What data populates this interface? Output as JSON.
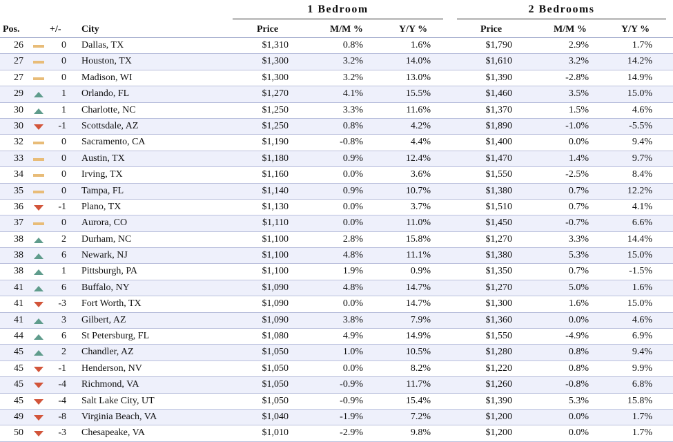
{
  "groups": {
    "one_bedroom": "1 Bedroom",
    "two_bedrooms": "2 Bedrooms"
  },
  "columns": {
    "pos": "Pos.",
    "change": "+/-",
    "city": "City",
    "price": "Price",
    "mm": "M/M %",
    "yy": "Y/Y %"
  },
  "indicator_colors": {
    "up": "#5f9c8c",
    "down": "#d2553a",
    "same": "#e8bc78"
  },
  "rows": [
    {
      "pos": "26",
      "trend": "same",
      "change": "0",
      "city": "Dallas, TX",
      "p1": "$1,310",
      "m1": "0.8%",
      "y1": "1.6%",
      "p2": "$1,790",
      "m2": "2.9%",
      "y2": "1.7%"
    },
    {
      "pos": "27",
      "trend": "same",
      "change": "0",
      "city": "Houston, TX",
      "p1": "$1,300",
      "m1": "3.2%",
      "y1": "14.0%",
      "p2": "$1,610",
      "m2": "3.2%",
      "y2": "14.2%"
    },
    {
      "pos": "27",
      "trend": "same",
      "change": "0",
      "city": "Madison, WI",
      "p1": "$1,300",
      "m1": "3.2%",
      "y1": "13.0%",
      "p2": "$1,390",
      "m2": "-2.8%",
      "y2": "14.9%"
    },
    {
      "pos": "29",
      "trend": "up",
      "change": "1",
      "city": "Orlando, FL",
      "p1": "$1,270",
      "m1": "4.1%",
      "y1": "15.5%",
      "p2": "$1,460",
      "m2": "3.5%",
      "y2": "15.0%"
    },
    {
      "pos": "30",
      "trend": "up",
      "change": "1",
      "city": "Charlotte, NC",
      "p1": "$1,250",
      "m1": "3.3%",
      "y1": "11.6%",
      "p2": "$1,370",
      "m2": "1.5%",
      "y2": "4.6%"
    },
    {
      "pos": "30",
      "trend": "down",
      "change": "-1",
      "city": "Scottsdale, AZ",
      "p1": "$1,250",
      "m1": "0.8%",
      "y1": "4.2%",
      "p2": "$1,890",
      "m2": "-1.0%",
      "y2": "-5.5%"
    },
    {
      "pos": "32",
      "trend": "same",
      "change": "0",
      "city": "Sacramento, CA",
      "p1": "$1,190",
      "m1": "-0.8%",
      "y1": "4.4%",
      "p2": "$1,400",
      "m2": "0.0%",
      "y2": "9.4%"
    },
    {
      "pos": "33",
      "trend": "same",
      "change": "0",
      "city": "Austin, TX",
      "p1": "$1,180",
      "m1": "0.9%",
      "y1": "12.4%",
      "p2": "$1,470",
      "m2": "1.4%",
      "y2": "9.7%"
    },
    {
      "pos": "34",
      "trend": "same",
      "change": "0",
      "city": "Irving, TX",
      "p1": "$1,160",
      "m1": "0.0%",
      "y1": "3.6%",
      "p2": "$1,550",
      "m2": "-2.5%",
      "y2": "8.4%"
    },
    {
      "pos": "35",
      "trend": "same",
      "change": "0",
      "city": "Tampa, FL",
      "p1": "$1,140",
      "m1": "0.9%",
      "y1": "10.7%",
      "p2": "$1,380",
      "m2": "0.7%",
      "y2": "12.2%"
    },
    {
      "pos": "36",
      "trend": "down",
      "change": "-1",
      "city": "Plano, TX",
      "p1": "$1,130",
      "m1": "0.0%",
      "y1": "3.7%",
      "p2": "$1,510",
      "m2": "0.7%",
      "y2": "4.1%"
    },
    {
      "pos": "37",
      "trend": "same",
      "change": "0",
      "city": "Aurora, CO",
      "p1": "$1,110",
      "m1": "0.0%",
      "y1": "11.0%",
      "p2": "$1,450",
      "m2": "-0.7%",
      "y2": "6.6%"
    },
    {
      "pos": "38",
      "trend": "up",
      "change": "2",
      "city": "Durham, NC",
      "p1": "$1,100",
      "m1": "2.8%",
      "y1": "15.8%",
      "p2": "$1,270",
      "m2": "3.3%",
      "y2": "14.4%"
    },
    {
      "pos": "38",
      "trend": "up",
      "change": "6",
      "city": "Newark, NJ",
      "p1": "$1,100",
      "m1": "4.8%",
      "y1": "11.1%",
      "p2": "$1,380",
      "m2": "5.3%",
      "y2": "15.0%"
    },
    {
      "pos": "38",
      "trend": "up",
      "change": "1",
      "city": "Pittsburgh, PA",
      "p1": "$1,100",
      "m1": "1.9%",
      "y1": "0.9%",
      "p2": "$1,350",
      "m2": "0.7%",
      "y2": "-1.5%"
    },
    {
      "pos": "41",
      "trend": "up",
      "change": "6",
      "city": "Buffalo, NY",
      "p1": "$1,090",
      "m1": "4.8%",
      "y1": "14.7%",
      "p2": "$1,270",
      "m2": "5.0%",
      "y2": "1.6%"
    },
    {
      "pos": "41",
      "trend": "down",
      "change": "-3",
      "city": "Fort Worth, TX",
      "p1": "$1,090",
      "m1": "0.0%",
      "y1": "14.7%",
      "p2": "$1,300",
      "m2": "1.6%",
      "y2": "15.0%"
    },
    {
      "pos": "41",
      "trend": "up",
      "change": "3",
      "city": "Gilbert, AZ",
      "p1": "$1,090",
      "m1": "3.8%",
      "y1": "7.9%",
      "p2": "$1,360",
      "m2": "0.0%",
      "y2": "4.6%"
    },
    {
      "pos": "44",
      "trend": "up",
      "change": "6",
      "city": "St Petersburg, FL",
      "p1": "$1,080",
      "m1": "4.9%",
      "y1": "14.9%",
      "p2": "$1,550",
      "m2": "-4.9%",
      "y2": "6.9%"
    },
    {
      "pos": "45",
      "trend": "up",
      "change": "2",
      "city": "Chandler, AZ",
      "p1": "$1,050",
      "m1": "1.0%",
      "y1": "10.5%",
      "p2": "$1,280",
      "m2": "0.8%",
      "y2": "9.4%"
    },
    {
      "pos": "45",
      "trend": "down",
      "change": "-1",
      "city": "Henderson, NV",
      "p1": "$1,050",
      "m1": "0.0%",
      "y1": "8.2%",
      "p2": "$1,220",
      "m2": "0.8%",
      "y2": "9.9%"
    },
    {
      "pos": "45",
      "trend": "down",
      "change": "-4",
      "city": "Richmond, VA",
      "p1": "$1,050",
      "m1": "-0.9%",
      "y1": "11.7%",
      "p2": "$1,260",
      "m2": "-0.8%",
      "y2": "6.8%"
    },
    {
      "pos": "45",
      "trend": "down",
      "change": "-4",
      "city": "Salt Lake City, UT",
      "p1": "$1,050",
      "m1": "-0.9%",
      "y1": "15.4%",
      "p2": "$1,390",
      "m2": "5.3%",
      "y2": "15.8%"
    },
    {
      "pos": "49",
      "trend": "down",
      "change": "-8",
      "city": "Virginia Beach, VA",
      "p1": "$1,040",
      "m1": "-1.9%",
      "y1": "7.2%",
      "p2": "$1,200",
      "m2": "0.0%",
      "y2": "1.7%"
    },
    {
      "pos": "50",
      "trend": "down",
      "change": "-3",
      "city": "Chesapeake, VA",
      "p1": "$1,010",
      "m1": "-2.9%",
      "y1": "9.8%",
      "p2": "$1,200",
      "m2": "0.0%",
      "y2": "1.7%"
    }
  ]
}
